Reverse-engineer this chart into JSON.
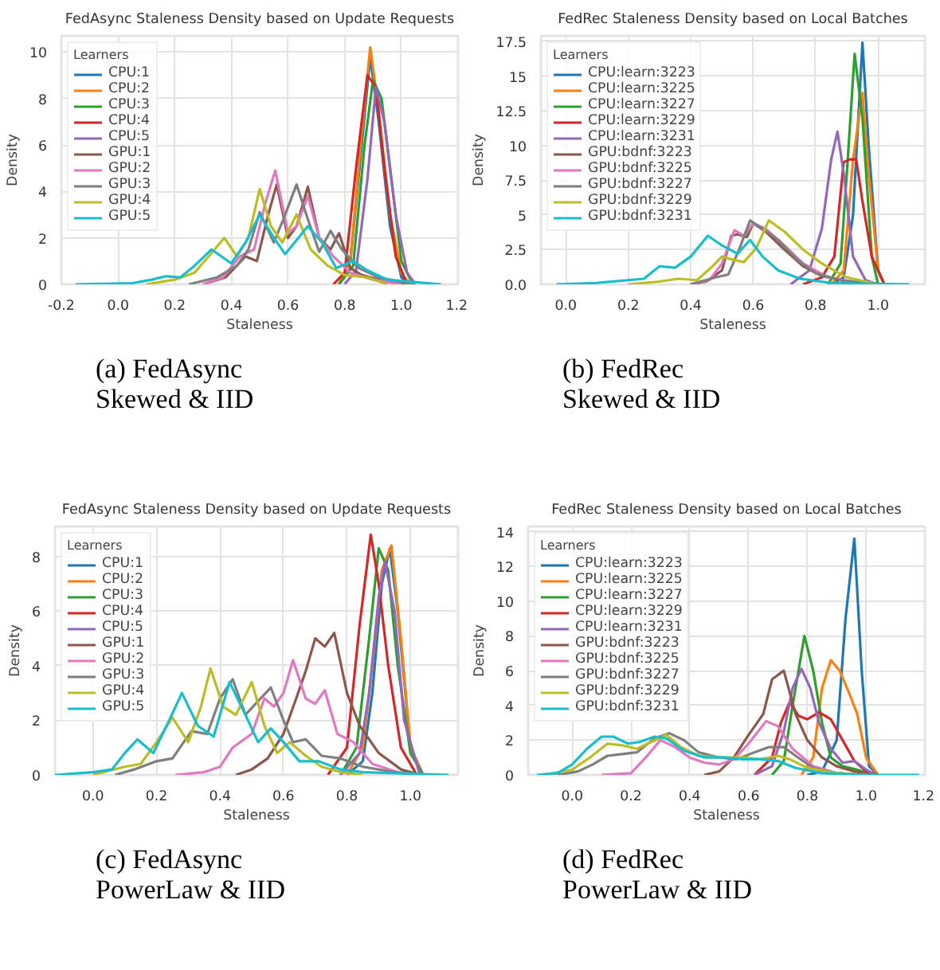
{
  "chart_data": [
    {
      "type": "line",
      "title": "FedAsync Staleness Density based on Update Requests",
      "xlabel": "Staleness",
      "ylabel": "Density",
      "legend_title": "Learners",
      "legend": "top left",
      "grid": true,
      "annotations": [
        "(a) FedAsync\nSkewed & IID"
      ],
      "xlim": [
        -0.2,
        1.2
      ],
      "ylim": [
        0,
        10.7
      ],
      "xticks": [
        {
          "value": -0.2,
          "label": "-0.2"
        },
        {
          "value": 0,
          "label": "0.0"
        },
        {
          "value": 0.2,
          "label": "0.2"
        },
        {
          "value": 0.4,
          "label": "0.4"
        },
        {
          "value": 0.6,
          "label": "0.6"
        },
        {
          "value": 0.8,
          "label": "0.8"
        },
        {
          "value": 1.0,
          "label": "1.0"
        },
        {
          "value": 1.2,
          "label": "1.2"
        }
      ],
      "yticks": [
        0,
        2,
        4,
        6,
        8,
        10
      ],
      "series": [
        {
          "name": "CPU:1",
          "color": "#1f77b4",
          "x": [
            0.78,
            0.82,
            0.86,
            0.89,
            0.92,
            0.96,
            1.0,
            1.03
          ],
          "values": [
            0,
            1,
            6,
            9.8,
            7,
            2.5,
            0.3,
            0
          ]
        },
        {
          "name": "CPU:2",
          "color": "#ff7f0e",
          "x": [
            0.78,
            0.82,
            0.86,
            0.89,
            0.92,
            0.96,
            1.0,
            1.03
          ],
          "values": [
            0,
            1,
            6.5,
            10.2,
            7.5,
            3,
            0.5,
            0
          ]
        },
        {
          "name": "CPU:3",
          "color": "#2ca02c",
          "x": [
            0.78,
            0.83,
            0.87,
            0.9,
            0.93,
            0.97,
            1.0,
            1.04
          ],
          "values": [
            0,
            0.8,
            6,
            8.8,
            8,
            4,
            1,
            0
          ]
        },
        {
          "name": "CPU:4",
          "color": "#d62728",
          "x": [
            0.76,
            0.8,
            0.84,
            0.88,
            0.91,
            0.94,
            0.98,
            1.02
          ],
          "values": [
            0,
            0.5,
            5,
            9,
            8.5,
            5,
            1.2,
            0
          ]
        },
        {
          "name": "CPU:5",
          "color": "#9467bd",
          "x": [
            0.8,
            0.84,
            0.88,
            0.91,
            0.94,
            0.98,
            1.02,
            1.05
          ],
          "values": [
            0,
            0.6,
            4.5,
            8.5,
            7,
            3,
            0.5,
            0
          ]
        },
        {
          "name": "GPU:1",
          "color": "#8c564b",
          "x": [
            0.3,
            0.38,
            0.45,
            0.49,
            0.53,
            0.56,
            0.6,
            0.63,
            0.67,
            0.71,
            0.75,
            0.78,
            0.82,
            0.86,
            0.95,
            1.03
          ],
          "values": [
            0,
            0.3,
            1.2,
            1.0,
            3,
            4.3,
            2,
            2.5,
            4.2,
            2,
            1.5,
            2.2,
            0.7,
            0.4,
            0.1,
            0
          ]
        },
        {
          "name": "GPU:2",
          "color": "#e377c2",
          "x": [
            0.3,
            0.37,
            0.43,
            0.48,
            0.52,
            0.555,
            0.6,
            0.63,
            0.67,
            0.71,
            0.76,
            0.82,
            0.9,
            1.0
          ],
          "values": [
            0,
            0.3,
            1.2,
            1.5,
            3.5,
            4.9,
            2.2,
            2.5,
            3.8,
            2,
            1.2,
            0.5,
            0.2,
            0
          ]
        },
        {
          "name": "GPU:3",
          "color": "#7f7f7f",
          "x": [
            0.25,
            0.35,
            0.42,
            0.46,
            0.5,
            0.55,
            0.59,
            0.63,
            0.67,
            0.71,
            0.75,
            0.79,
            0.85,
            0.92,
            1.0,
            1.05
          ],
          "values": [
            0,
            0.3,
            0.8,
            1.5,
            3.1,
            1.8,
            3,
            4.3,
            2.8,
            1.4,
            2.3,
            1.5,
            0.7,
            0.3,
            0.1,
            0
          ]
        },
        {
          "name": "GPU:4",
          "color": "#bcbd22",
          "x": [
            0.1,
            0.2,
            0.27,
            0.32,
            0.375,
            0.42,
            0.46,
            0.5,
            0.54,
            0.58,
            0.63,
            0.68,
            0.74,
            0.8,
            0.88,
            0.95
          ],
          "values": [
            0,
            0.2,
            0.5,
            1.2,
            2,
            1.2,
            2,
            4.1,
            2.5,
            1.8,
            3,
            1.5,
            0.8,
            0.4,
            0.3,
            0
          ]
        },
        {
          "name": "GPU:5",
          "color": "#17becf",
          "x": [
            -0.15,
            0.05,
            0.12,
            0.17,
            0.22,
            0.27,
            0.33,
            0.4,
            0.45,
            0.5,
            0.55,
            0.59,
            0.63,
            0.67,
            0.72,
            0.77,
            0.83,
            0.88,
            0.95,
            1.14
          ],
          "values": [
            0,
            0.05,
            0.2,
            0.35,
            0.3,
            0.8,
            1.5,
            0.9,
            1.8,
            3,
            2,
            1.3,
            1.9,
            2.5,
            1.8,
            0.7,
            1,
            0.6,
            0.2,
            0
          ]
        }
      ]
    },
    {
      "type": "line",
      "title": "FedRec Staleness Density based on Local Batches",
      "xlabel": "Staleness",
      "ylabel": "Density",
      "legend_title": "Learners",
      "legend": "top left",
      "grid": true,
      "annotations": [
        "(b) FedRec\nSkewed & IID"
      ],
      "xlim": [
        -0.08,
        1.15
      ],
      "ylim": [
        0,
        17.9
      ],
      "xticks": [
        {
          "value": 0,
          "label": "0.0"
        },
        {
          "value": 0.2,
          "label": "0.2"
        },
        {
          "value": 0.4,
          "label": "0.4"
        },
        {
          "value": 0.6,
          "label": "0.6"
        },
        {
          "value": 0.8,
          "label": "0.8"
        },
        {
          "value": 1.0,
          "label": "1.0"
        }
      ],
      "yticks": [
        {
          "value": 0,
          "label": "0.0"
        },
        2.5,
        5,
        7.5,
        10,
        12.5,
        15,
        17.5
      ],
      "series": [
        {
          "name": "CPU:learn:3223",
          "color": "#1f77b4",
          "x": [
            0.85,
            0.89,
            0.92,
            0.95,
            0.97,
            1.0,
            1.02
          ],
          "values": [
            0,
            0.5,
            5,
            17.4,
            10,
            1,
            0
          ]
        },
        {
          "name": "CPU:learn:3225",
          "color": "#ff7f0e",
          "x": [
            0.85,
            0.89,
            0.92,
            0.95,
            0.97,
            1.0,
            1.02
          ],
          "values": [
            0,
            1,
            9,
            13.8,
            8,
            1,
            0
          ]
        },
        {
          "name": "CPU:learn:3227",
          "color": "#2ca02c",
          "x": [
            0.84,
            0.88,
            0.9,
            0.925,
            0.95,
            0.98,
            1.0
          ],
          "values": [
            0,
            1.5,
            8,
            16.6,
            12,
            2,
            0
          ]
        },
        {
          "name": "CPU:learn:3229",
          "color": "#d62728",
          "x": [
            0.76,
            0.82,
            0.86,
            0.89,
            0.91,
            0.93,
            0.95,
            0.98,
            1.02
          ],
          "values": [
            0,
            0.5,
            2,
            8.8,
            9,
            9,
            6,
            2,
            0
          ]
        },
        {
          "name": "CPU:learn:3231",
          "color": "#9467bd",
          "x": [
            0.72,
            0.78,
            0.82,
            0.85,
            0.87,
            0.89,
            0.92,
            0.96,
            1.0
          ],
          "values": [
            0,
            1,
            4,
            9,
            11,
            8,
            2,
            0.3,
            0
          ]
        },
        {
          "name": "GPU:bdnf:3223",
          "color": "#8c564b",
          "x": [
            0.4,
            0.45,
            0.5,
            0.53,
            0.55,
            0.58,
            0.6,
            0.64,
            0.7,
            0.76,
            0.82,
            0.9,
            1.0
          ],
          "values": [
            0,
            0.2,
            1,
            3.5,
            3.6,
            3.4,
            4.4,
            3.8,
            2.5,
            1.3,
            0.6,
            0.2,
            0
          ]
        },
        {
          "name": "GPU:bdnf:3225",
          "color": "#e377c2",
          "x": [
            0.4,
            0.46,
            0.5,
            0.54,
            0.57,
            0.6,
            0.64,
            0.7,
            0.76,
            0.84,
            0.92,
            1.0
          ],
          "values": [
            0,
            0.3,
            1.5,
            3.9,
            3.5,
            4.4,
            4,
            2.8,
            1.5,
            0.5,
            0.2,
            0
          ]
        },
        {
          "name": "GPU:bdnf:3227",
          "color": "#7f7f7f",
          "x": [
            0.4,
            0.48,
            0.52,
            0.555,
            0.59,
            0.63,
            0.68,
            0.74,
            0.8,
            0.88,
            0.96,
            1.02
          ],
          "values": [
            0,
            0.5,
            0.7,
            2.5,
            4.6,
            4.0,
            3.2,
            1.8,
            0.8,
            0.3,
            0.1,
            0
          ]
        },
        {
          "name": "GPU:bdnf:3229",
          "color": "#bcbd22",
          "x": [
            0.2,
            0.3,
            0.36,
            0.42,
            0.47,
            0.5,
            0.53,
            0.57,
            0.61,
            0.65,
            0.7,
            0.76,
            0.82,
            0.9,
            1.0
          ],
          "values": [
            0,
            0.2,
            0.4,
            0.3,
            1.3,
            2,
            1.8,
            1.6,
            2.6,
            4.6,
            3.8,
            2.5,
            1.5,
            0.5,
            0
          ]
        },
        {
          "name": "GPU:bdnf:3231",
          "color": "#17becf",
          "x": [
            -0.03,
            0.1,
            0.2,
            0.25,
            0.3,
            0.35,
            0.4,
            0.455,
            0.5,
            0.55,
            0.59,
            0.63,
            0.68,
            0.75,
            0.85,
            1.1
          ],
          "values": [
            0,
            0.1,
            0.3,
            0.4,
            1.3,
            1.2,
            2,
            3.5,
            2.8,
            2.2,
            3.2,
            2,
            1,
            0.4,
            0.1,
            0
          ]
        }
      ]
    },
    {
      "type": "line",
      "title": "FedAsync Staleness Density based on Update Requests",
      "xlabel": "Staleness",
      "ylabel": "Density",
      "legend_title": "Learners",
      "legend": "top left",
      "grid": true,
      "annotations": [
        "(c) FedAsync\nPowerLaw & IID"
      ],
      "xlim": [
        -0.12,
        1.15
      ],
      "ylim": [
        0,
        9.1
      ],
      "xticks": [
        {
          "value": 0,
          "label": "0.0"
        },
        {
          "value": 0.2,
          "label": "0.2"
        },
        {
          "value": 0.4,
          "label": "0.4"
        },
        {
          "value": 0.6,
          "label": "0.6"
        },
        {
          "value": 0.8,
          "label": "0.8"
        },
        {
          "value": 1.0,
          "label": "1.0"
        }
      ],
      "yticks": [
        0,
        2,
        4,
        6,
        8
      ],
      "series": [
        {
          "name": "CPU:1",
          "color": "#1f77b4",
          "x": [
            0.8,
            0.85,
            0.88,
            0.91,
            0.935,
            0.96,
            1.0,
            1.04
          ],
          "values": [
            0,
            0.5,
            3,
            7,
            8.3,
            6,
            1,
            0
          ]
        },
        {
          "name": "CPU:2",
          "color": "#ff7f0e",
          "x": [
            0.8,
            0.85,
            0.88,
            0.91,
            0.94,
            0.97,
            1.0,
            1.04
          ],
          "values": [
            0,
            1,
            4,
            7.5,
            8.4,
            5,
            1,
            0
          ]
        },
        {
          "name": "CPU:3",
          "color": "#2ca02c",
          "x": [
            0.78,
            0.83,
            0.87,
            0.9,
            0.93,
            0.96,
            1.0,
            1.04
          ],
          "values": [
            0,
            1,
            5,
            8.3,
            7.5,
            4,
            0.8,
            0
          ]
        },
        {
          "name": "CPU:4",
          "color": "#d62728",
          "x": [
            0.74,
            0.8,
            0.84,
            0.875,
            0.9,
            0.93,
            0.97,
            1.02
          ],
          "values": [
            0,
            1,
            5.5,
            8.8,
            7,
            4,
            1,
            0
          ]
        },
        {
          "name": "CPU:5",
          "color": "#9467bd",
          "x": [
            0.78,
            0.84,
            0.87,
            0.9,
            0.92,
            0.95,
            0.98,
            1.03
          ],
          "values": [
            0,
            0.8,
            3,
            6.5,
            7.8,
            6,
            2,
            0
          ]
        },
        {
          "name": "GPU:1",
          "color": "#8c564b",
          "x": [
            0.45,
            0.5,
            0.55,
            0.6,
            0.64,
            0.67,
            0.7,
            0.73,
            0.76,
            0.8,
            0.84,
            0.9,
            0.97,
            1.03
          ],
          "values": [
            0,
            0.2,
            0.6,
            1.5,
            2.8,
            3.8,
            5,
            4.7,
            5.2,
            3,
            1.8,
            0.8,
            0.2,
            0
          ]
        },
        {
          "name": "GPU:2",
          "color": "#e377c2",
          "x": [
            0.26,
            0.35,
            0.4,
            0.44,
            0.5,
            0.54,
            0.57,
            0.6,
            0.63,
            0.67,
            0.7,
            0.73,
            0.77,
            0.82,
            0.88,
            0.96,
            1.02
          ],
          "values": [
            0,
            0.1,
            0.3,
            1,
            1.5,
            2.8,
            2.5,
            3,
            4.2,
            2.8,
            2.6,
            3.1,
            1.5,
            1.2,
            0.4,
            0.1,
            0
          ]
        },
        {
          "name": "GPU:3",
          "color": "#7f7f7f",
          "x": [
            0.07,
            0.13,
            0.2,
            0.25,
            0.31,
            0.36,
            0.4,
            0.44,
            0.48,
            0.52,
            0.56,
            0.6,
            0.63,
            0.67,
            0.72,
            0.78,
            0.85,
            0.95,
            1.05
          ],
          "values": [
            0,
            0.2,
            0.5,
            0.6,
            1.6,
            1.5,
            2.8,
            3.5,
            2.2,
            2.7,
            3.2,
            2,
            1.2,
            1.3,
            0.7,
            0.6,
            0.3,
            0.1,
            0
          ]
        },
        {
          "name": "GPU:4",
          "color": "#bcbd22",
          "x": [
            0.0,
            0.1,
            0.15,
            0.2,
            0.25,
            0.3,
            0.34,
            0.37,
            0.41,
            0.45,
            0.5,
            0.54,
            0.58,
            0.62,
            0.67,
            0.72,
            0.78,
            0.85
          ],
          "values": [
            0,
            0.3,
            0.4,
            1.2,
            2.1,
            1.2,
            2.5,
            3.9,
            2.5,
            2.2,
            3.4,
            1.8,
            0.8,
            1.2,
            0.7,
            0.3,
            0.1,
            0
          ]
        },
        {
          "name": "GPU:5",
          "color": "#17becf",
          "x": [
            -0.12,
            0.0,
            0.06,
            0.1,
            0.14,
            0.19,
            0.24,
            0.28,
            0.33,
            0.38,
            0.43,
            0.48,
            0.52,
            0.56,
            0.6,
            0.65,
            0.71,
            0.78,
            0.85,
            1.12
          ],
          "values": [
            0,
            0.1,
            0.2,
            0.8,
            1.3,
            0.8,
            2,
            3,
            1.8,
            1.4,
            3.4,
            2.2,
            1.2,
            1.7,
            1.2,
            0.5,
            0.5,
            0.2,
            0.1,
            0
          ]
        }
      ]
    },
    {
      "type": "line",
      "title": "FedRec Staleness Density based on Local Batches",
      "xlabel": "Staleness",
      "ylabel": "Density",
      "legend_title": "Learners",
      "legend": "top left",
      "grid": true,
      "annotations": [
        "(d) FedRec\nPowerLaw & IID"
      ],
      "xlim": [
        -0.15,
        1.2
      ],
      "ylim": [
        0,
        14.3
      ],
      "xticks": [
        {
          "value": 0,
          "label": "0.0"
        },
        {
          "value": 0.2,
          "label": "0.2"
        },
        {
          "value": 0.4,
          "label": "0.4"
        },
        {
          "value": 0.6,
          "label": "0.6"
        },
        {
          "value": 0.8,
          "label": "0.8"
        },
        {
          "value": 1.0,
          "label": "1.0"
        },
        {
          "value": 1.2,
          "label": "1.2"
        }
      ],
      "yticks": [
        0,
        2,
        4,
        6,
        8,
        10,
        12,
        14
      ],
      "series": [
        {
          "name": "CPU:learn:3223",
          "color": "#1f77b4",
          "x": [
            0.8,
            0.85,
            0.9,
            0.93,
            0.96,
            0.985,
            1.01,
            1.04
          ],
          "values": [
            0,
            0.2,
            2,
            9,
            13.6,
            6,
            0.5,
            0
          ]
        },
        {
          "name": "CPU:learn:3225",
          "color": "#ff7f0e",
          "x": [
            0.78,
            0.82,
            0.85,
            0.88,
            0.91,
            0.94,
            0.97,
            1.0,
            1.04
          ],
          "values": [
            0,
            1,
            5,
            6.6,
            6,
            4.8,
            3.5,
            1,
            0
          ]
        },
        {
          "name": "CPU:learn:3227",
          "color": "#2ca02c",
          "x": [
            0.68,
            0.72,
            0.75,
            0.79,
            0.82,
            0.85,
            0.88,
            0.92,
            0.97,
            1.02
          ],
          "values": [
            0,
            0.8,
            4,
            8,
            6,
            3,
            1,
            0.5,
            0.3,
            0
          ]
        },
        {
          "name": "CPU:learn:3229",
          "color": "#d62728",
          "x": [
            0.62,
            0.68,
            0.71,
            0.74,
            0.77,
            0.8,
            0.84,
            0.88,
            0.92,
            0.96,
            1.0,
            1.04
          ],
          "values": [
            0,
            1,
            3,
            4.2,
            3.4,
            3.2,
            3.6,
            3.2,
            2,
            0.8,
            0.2,
            0
          ]
        },
        {
          "name": "CPU:learn:3231",
          "color": "#9467bd",
          "x": [
            0.62,
            0.68,
            0.72,
            0.75,
            0.78,
            0.81,
            0.84,
            0.88,
            0.92,
            0.96,
            1.0,
            1.03
          ],
          "values": [
            0,
            0.5,
            2.5,
            5,
            6.1,
            5,
            3,
            1.5,
            0.7,
            0.8,
            0.3,
            0
          ]
        },
        {
          "name": "GPU:bdnf:3223",
          "color": "#8c564b",
          "x": [
            0.45,
            0.5,
            0.55,
            0.6,
            0.65,
            0.68,
            0.72,
            0.76,
            0.8,
            0.85,
            0.9,
            0.96,
            1.02
          ],
          "values": [
            0,
            0.2,
            1,
            2.3,
            3.5,
            5.5,
            6,
            3.5,
            2,
            1,
            0.5,
            0.2,
            0
          ]
        },
        {
          "name": "GPU:bdnf:3225",
          "color": "#e377c2",
          "x": [
            0.1,
            0.2,
            0.25,
            0.3,
            0.35,
            0.4,
            0.45,
            0.5,
            0.55,
            0.6,
            0.66,
            0.7,
            0.75,
            0.82,
            0.9,
            1.0
          ],
          "values": [
            0,
            0.1,
            1,
            2,
            1.6,
            1,
            0.7,
            0.6,
            0.9,
            1.8,
            3.1,
            2.8,
            1.5,
            0.5,
            0.1,
            0
          ]
        },
        {
          "name": "GPU:bdnf:3227",
          "color": "#7f7f7f",
          "x": [
            -0.05,
            0.02,
            0.07,
            0.12,
            0.17,
            0.22,
            0.28,
            0.33,
            0.38,
            0.43,
            0.5,
            0.56,
            0.62,
            0.67,
            0.72,
            0.76,
            0.82,
            0.9,
            1.0
          ],
          "values": [
            0,
            0.2,
            0.6,
            1.1,
            1.2,
            1.3,
            2.1,
            2.4,
            2,
            1.3,
            1,
            0.9,
            1.3,
            1.6,
            1.6,
            1.1,
            0.4,
            0.1,
            0
          ]
        },
        {
          "name": "GPU:bdnf:3229",
          "color": "#bcbd22",
          "x": [
            -0.1,
            0.0,
            0.06,
            0.12,
            0.17,
            0.22,
            0.27,
            0.32,
            0.37,
            0.43,
            0.5,
            0.58,
            0.64,
            0.7,
            0.74,
            0.8,
            0.9,
            1.0
          ],
          "values": [
            0,
            0.3,
            1,
            1.8,
            1.7,
            1.5,
            1.9,
            2.3,
            1.6,
            1.1,
            1,
            1,
            0.9,
            1.1,
            0.9,
            0.4,
            0.1,
            0
          ]
        },
        {
          "name": "GPU:bdnf:3231",
          "color": "#17becf",
          "x": [
            -0.12,
            -0.05,
            0.0,
            0.05,
            0.1,
            0.14,
            0.19,
            0.23,
            0.28,
            0.32,
            0.38,
            0.45,
            0.52,
            0.58,
            0.64,
            0.7,
            0.76,
            0.85,
            1.0,
            1.18
          ],
          "values": [
            0,
            0.1,
            0.6,
            1.5,
            2.2,
            2.2,
            1.8,
            1.9,
            2.2,
            2.1,
            1.4,
            1,
            1,
            0.9,
            0.9,
            0.8,
            0.4,
            0.1,
            0,
            0
          ]
        }
      ]
    }
  ]
}
